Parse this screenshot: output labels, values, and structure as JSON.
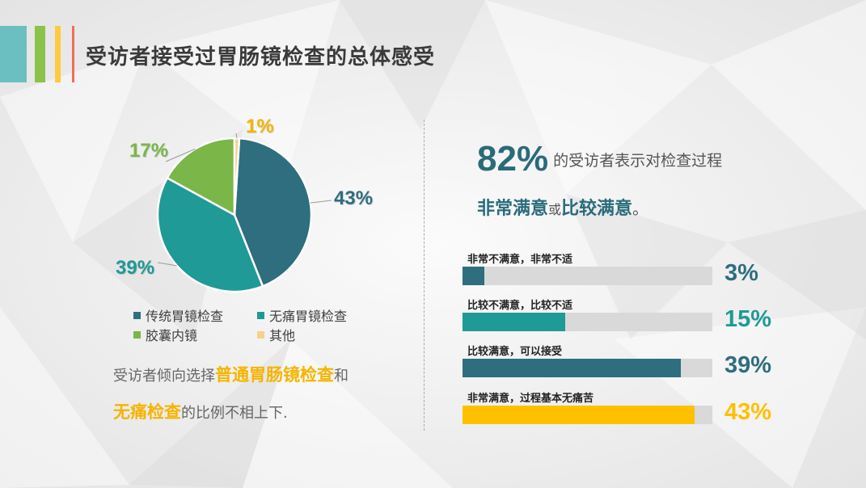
{
  "slide": {
    "title": "受访者接受过胃肠镜检查的总体感受",
    "deco_colors": [
      "#6bbfc1",
      "#8bc34a",
      "#ffc940",
      "#f36b5a"
    ]
  },
  "chart_data": [
    {
      "type": "pie",
      "categories": [
        "传统胃镜检查",
        "无痛胃镜检查",
        "胶囊内镜",
        "其他"
      ],
      "values": [
        43,
        39,
        17,
        1
      ],
      "labels": [
        "43%",
        "39%",
        "17%",
        "1%"
      ],
      "colors": [
        "#2e6e7e",
        "#1f9a96",
        "#7ab648",
        "#f5d18a"
      ],
      "label_colors": [
        "#2e6e7e",
        "#1f9a96",
        "#7ab648",
        "#f5b400"
      ],
      "legend": "bottom"
    },
    {
      "type": "bar",
      "orientation": "horizontal",
      "categories": [
        "非常不满意，非常不适",
        "比较不满意，比较不适",
        "比较满意，可以接受",
        "非常满意，过程基本无痛苦"
      ],
      "values": [
        3,
        15,
        39,
        43
      ],
      "labels": [
        "3%",
        "15%",
        "39%",
        "43%"
      ],
      "colors": [
        "#2e6e7e",
        "#1f9a96",
        "#2e6e7e",
        "#ffc000"
      ],
      "label_colors": [
        "#2e6e7e",
        "#1f9a96",
        "#2e6e7e",
        "#ffc000"
      ],
      "track_color": "#d9d9d9",
      "xlim": [
        0,
        100
      ]
    }
  ],
  "note": {
    "part1": "受访者倾向选择",
    "hl1": "普通胃肠镜检查",
    "part2": "和",
    "hl2": "无痛检查",
    "part3": "的比例不相上下."
  },
  "headline": {
    "big": "82%",
    "text": "的受访者表示对检查过程",
    "s1": "非常满意",
    "mid": "或",
    "s2": "比较满意",
    "end": "。"
  }
}
